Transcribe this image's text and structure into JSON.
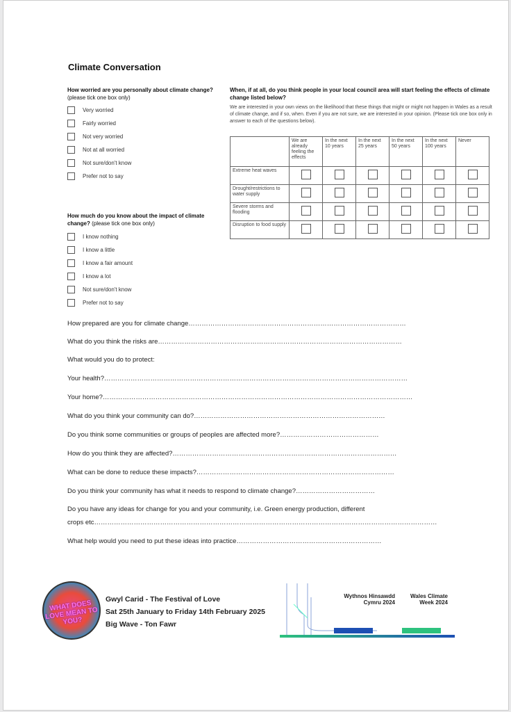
{
  "title": "Climate Conversation",
  "q1": {
    "heading": "How worried are you personally about climate change?",
    "note": "(please tick one box only)",
    "options": [
      "Very worried",
      "Fairly worried",
      "Not very worried",
      "Not at all worried",
      "Not sure/don't know",
      "Prefer not to say"
    ]
  },
  "q2": {
    "heading": "How much do you know about the impact of climate change?",
    "note": "(please tick one box only)",
    "options": [
      "I know nothing",
      "I know a little",
      "I know a fair amount",
      "I know a lot",
      "Not sure/don't know",
      "Prefer not to say"
    ]
  },
  "q3": {
    "heading": "When, if at all, do you think people in your local council area will start feeling the effects of climate change listed below?",
    "intro": "We are interested in your own views on the likelihood that these things that might or might not happen in Wales as a result of climate change, and if so, when. Even if you are not sure, we are interested in your opinion. (Please tick one box only in answer to each of the questions below).",
    "columns": [
      "We are already feeling the effects",
      "In the next 10 years",
      "In the next 25 years",
      "In the next 50 years",
      "In the next 100 years",
      "Never"
    ],
    "rows": [
      "Extreme heat waves",
      "Drought/restrictions to water supply",
      "Severe storms and flooding",
      "Disruption to food supply"
    ]
  },
  "open_questions": [
    "How prepared are you for climate change………………………………………………………………………………………",
    "What do you think the risks are…………………………………………………………………………………………………",
    "What would you do to protect:",
    "Your health?…………………………………………………………………………………………………………………………",
    "Your home?……………………………………………………………………………………………………………………………",
    "What do you think your community can do?……………………………………………………………………………",
    "Do you think some communities or groups of peoples are affected more?………………………………………",
    "How do you think they are affected?…………………………………………………………………………………………",
    "What can be done to reduce these impacts?………………………………………………………………………………",
    "Do you think your community has what it needs to respond to climate change?………………………………",
    "Do you have any ideas for change for you and your community, i.e. Green energy production, different",
    "crops etc…………………………………………………………………………………………………………………………………………",
    "What help would you need to put these ideas into practice…………………………………………………………"
  ],
  "event": {
    "logo_text": "WHAT DOES LOVE MEAN TO YOU?",
    "lines": [
      "Gwyl Carid - The Festival of Love",
      "Sat 25th January to Friday 14th February 2025",
      "Big Wave - Ton Fawr"
    ]
  },
  "wales": {
    "welsh_title": "Wythnos Hinsawdd Cymru 2024",
    "english_title": "Wales Climate Week 2024"
  }
}
